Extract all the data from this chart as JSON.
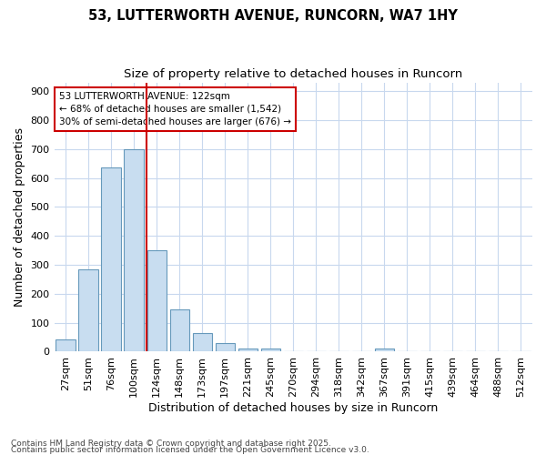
{
  "title1": "53, LUTTERWORTH AVENUE, RUNCORN, WA7 1HY",
  "title2": "Size of property relative to detached houses in Runcorn",
  "xlabel": "Distribution of detached houses by size in Runcorn",
  "ylabel": "Number of detached properties",
  "footer1": "Contains HM Land Registry data © Crown copyright and database right 2025.",
  "footer2": "Contains public sector information licensed under the Open Government Licence v3.0.",
  "categories": [
    "27sqm",
    "51sqm",
    "76sqm",
    "100sqm",
    "124sqm",
    "148sqm",
    "173sqm",
    "197sqm",
    "221sqm",
    "245sqm",
    "270sqm",
    "294sqm",
    "318sqm",
    "342sqm",
    "367sqm",
    "391sqm",
    "415sqm",
    "439sqm",
    "464sqm",
    "488sqm",
    "512sqm"
  ],
  "values": [
    42,
    285,
    635,
    700,
    350,
    145,
    65,
    30,
    12,
    10,
    0,
    0,
    0,
    0,
    10,
    0,
    0,
    0,
    0,
    0,
    0
  ],
  "bar_color": "#c8ddf0",
  "bar_edge_color": "#6699bb",
  "red_line_index": 4,
  "annotation_title": "53 LUTTERWORTH AVENUE: 122sqm",
  "annotation_line1": "← 68% of detached houses are smaller (1,542)",
  "annotation_line2": "30% of semi-detached houses are larger (676) →",
  "ylim": [
    0,
    930
  ],
  "yticks": [
    0,
    100,
    200,
    300,
    400,
    500,
    600,
    700,
    800,
    900
  ],
  "bg_color": "#ffffff",
  "plot_bg_color": "#ffffff",
  "grid_color": "#c8d8ee",
  "annotation_box_color": "#ffffff",
  "annotation_border_color": "#cc0000",
  "red_line_color": "#cc0000",
  "title1_fontsize": 10.5,
  "title2_fontsize": 9.5,
  "tick_fontsize": 8,
  "label_fontsize": 9,
  "annotation_fontsize": 7.5,
  "footer_fontsize": 6.5
}
